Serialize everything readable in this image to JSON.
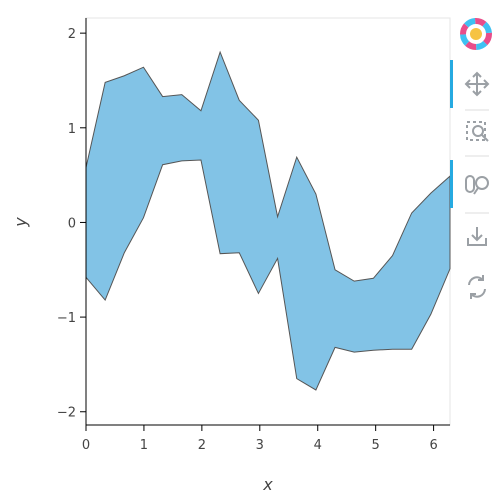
{
  "chart_data": {
    "type": "varea",
    "x_label": "x",
    "y_label": "y",
    "x": [
      0,
      0.3307,
      0.6614,
      0.9921,
      1.3228,
      1.6535,
      1.9842,
      2.3149,
      2.6456,
      2.9762,
      3.3069,
      3.6376,
      3.9683,
      4.299,
      4.6297,
      4.9604,
      5.2911,
      5.6218,
      5.9525,
      6.2832
    ],
    "y1": [
      0.58,
      1.48,
      1.55,
      1.64,
      1.33,
      1.35,
      1.18,
      1.8,
      1.29,
      1.08,
      0.06,
      0.69,
      0.3,
      -0.5,
      -0.62,
      -0.59,
      -0.35,
      0.1,
      0.31,
      0.49
    ],
    "y2": [
      -0.58,
      -0.82,
      -0.32,
      0.05,
      0.61,
      0.65,
      0.66,
      -0.33,
      -0.32,
      -0.75,
      -0.38,
      -1.65,
      -1.77,
      -1.32,
      -1.37,
      -1.35,
      -1.34,
      -1.34,
      -0.97,
      -0.49
    ],
    "color": "#82c3e6",
    "xlim": [
      0,
      6.2832
    ],
    "ylim": [
      -2.14,
      2.16
    ],
    "xticks": [
      0,
      1,
      2,
      3,
      4,
      5,
      6
    ],
    "yticks": [
      {
        "value": -2,
        "label": "−2"
      },
      {
        "value": -1,
        "label": "−1"
      },
      0,
      1,
      2
    ]
  }
}
